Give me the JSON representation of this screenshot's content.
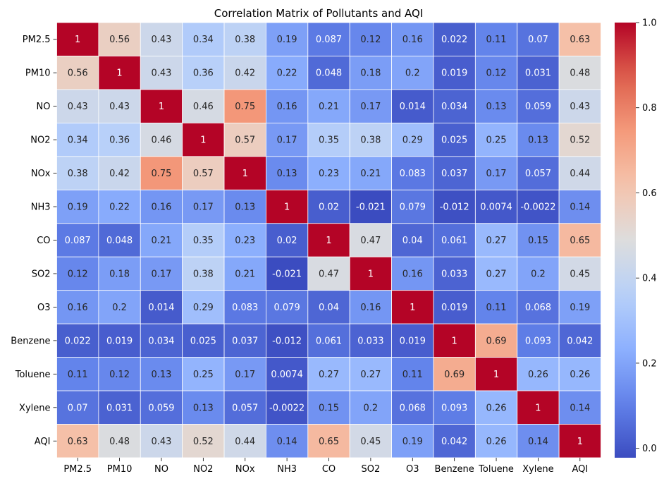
{
  "chart_data": {
    "type": "heatmap",
    "title": "Correlation Matrix of Pollutants and AQI",
    "xlabel": "",
    "ylabel": "",
    "categories": [
      "PM2.5",
      "PM10",
      "NO",
      "NO2",
      "NOx",
      "NH3",
      "CO",
      "SO2",
      "O3",
      "Benzene",
      "Toluene",
      "Xylene",
      "AQI"
    ],
    "matrix": [
      [
        1,
        0.56,
        0.43,
        0.34,
        0.38,
        0.19,
        0.087,
        0.12,
        0.16,
        0.022,
        0.11,
        0.07,
        0.63
      ],
      [
        0.56,
        1,
        0.43,
        0.36,
        0.42,
        0.22,
        0.048,
        0.18,
        0.2,
        0.019,
        0.12,
        0.031,
        0.48
      ],
      [
        0.43,
        0.43,
        1,
        0.46,
        0.75,
        0.16,
        0.21,
        0.17,
        0.014,
        0.034,
        0.13,
        0.059,
        0.43
      ],
      [
        0.34,
        0.36,
        0.46,
        1,
        0.57,
        0.17,
        0.35,
        0.38,
        0.29,
        0.025,
        0.25,
        0.13,
        0.52
      ],
      [
        0.38,
        0.42,
        0.75,
        0.57,
        1,
        0.13,
        0.23,
        0.21,
        0.083,
        0.037,
        0.17,
        0.057,
        0.44
      ],
      [
        0.19,
        0.22,
        0.16,
        0.17,
        0.13,
        1,
        0.02,
        -0.021,
        0.079,
        -0.012,
        0.0074,
        -0.0022,
        0.14
      ],
      [
        0.087,
        0.048,
        0.21,
        0.35,
        0.23,
        0.02,
        1,
        0.47,
        0.04,
        0.061,
        0.27,
        0.15,
        0.65
      ],
      [
        0.12,
        0.18,
        0.17,
        0.38,
        0.21,
        -0.021,
        0.47,
        1,
        0.16,
        0.033,
        0.27,
        0.2,
        0.45
      ],
      [
        0.16,
        0.2,
        0.014,
        0.29,
        0.083,
        0.079,
        0.04,
        0.16,
        1,
        0.019,
        0.11,
        0.068,
        0.19
      ],
      [
        0.022,
        0.019,
        0.034,
        0.025,
        0.037,
        -0.012,
        0.061,
        0.033,
        0.019,
        1,
        0.69,
        0.093,
        0.042
      ],
      [
        0.11,
        0.12,
        0.13,
        0.25,
        0.17,
        0.0074,
        0.27,
        0.27,
        0.11,
        0.69,
        1,
        0.26,
        0.26
      ],
      [
        0.07,
        0.031,
        0.059,
        0.13,
        0.057,
        -0.0022,
        0.15,
        0.2,
        0.068,
        0.093,
        0.26,
        1,
        0.14
      ],
      [
        0.63,
        0.48,
        0.43,
        0.52,
        0.44,
        0.14,
        0.65,
        0.45,
        0.19,
        0.042,
        0.26,
        0.14,
        1
      ]
    ],
    "colormap": "coolwarm",
    "vmin": -0.0221,
    "vmax": 1,
    "colorbar_ticks": [
      0.0,
      0.2,
      0.4,
      0.6,
      0.8,
      1.0
    ],
    "colorbar_tick_labels": [
      "0.0",
      "0.2",
      "0.4",
      "0.6",
      "0.8",
      "1.0"
    ],
    "grid": true,
    "grid_color": "#ffffff",
    "annotations": true
  }
}
